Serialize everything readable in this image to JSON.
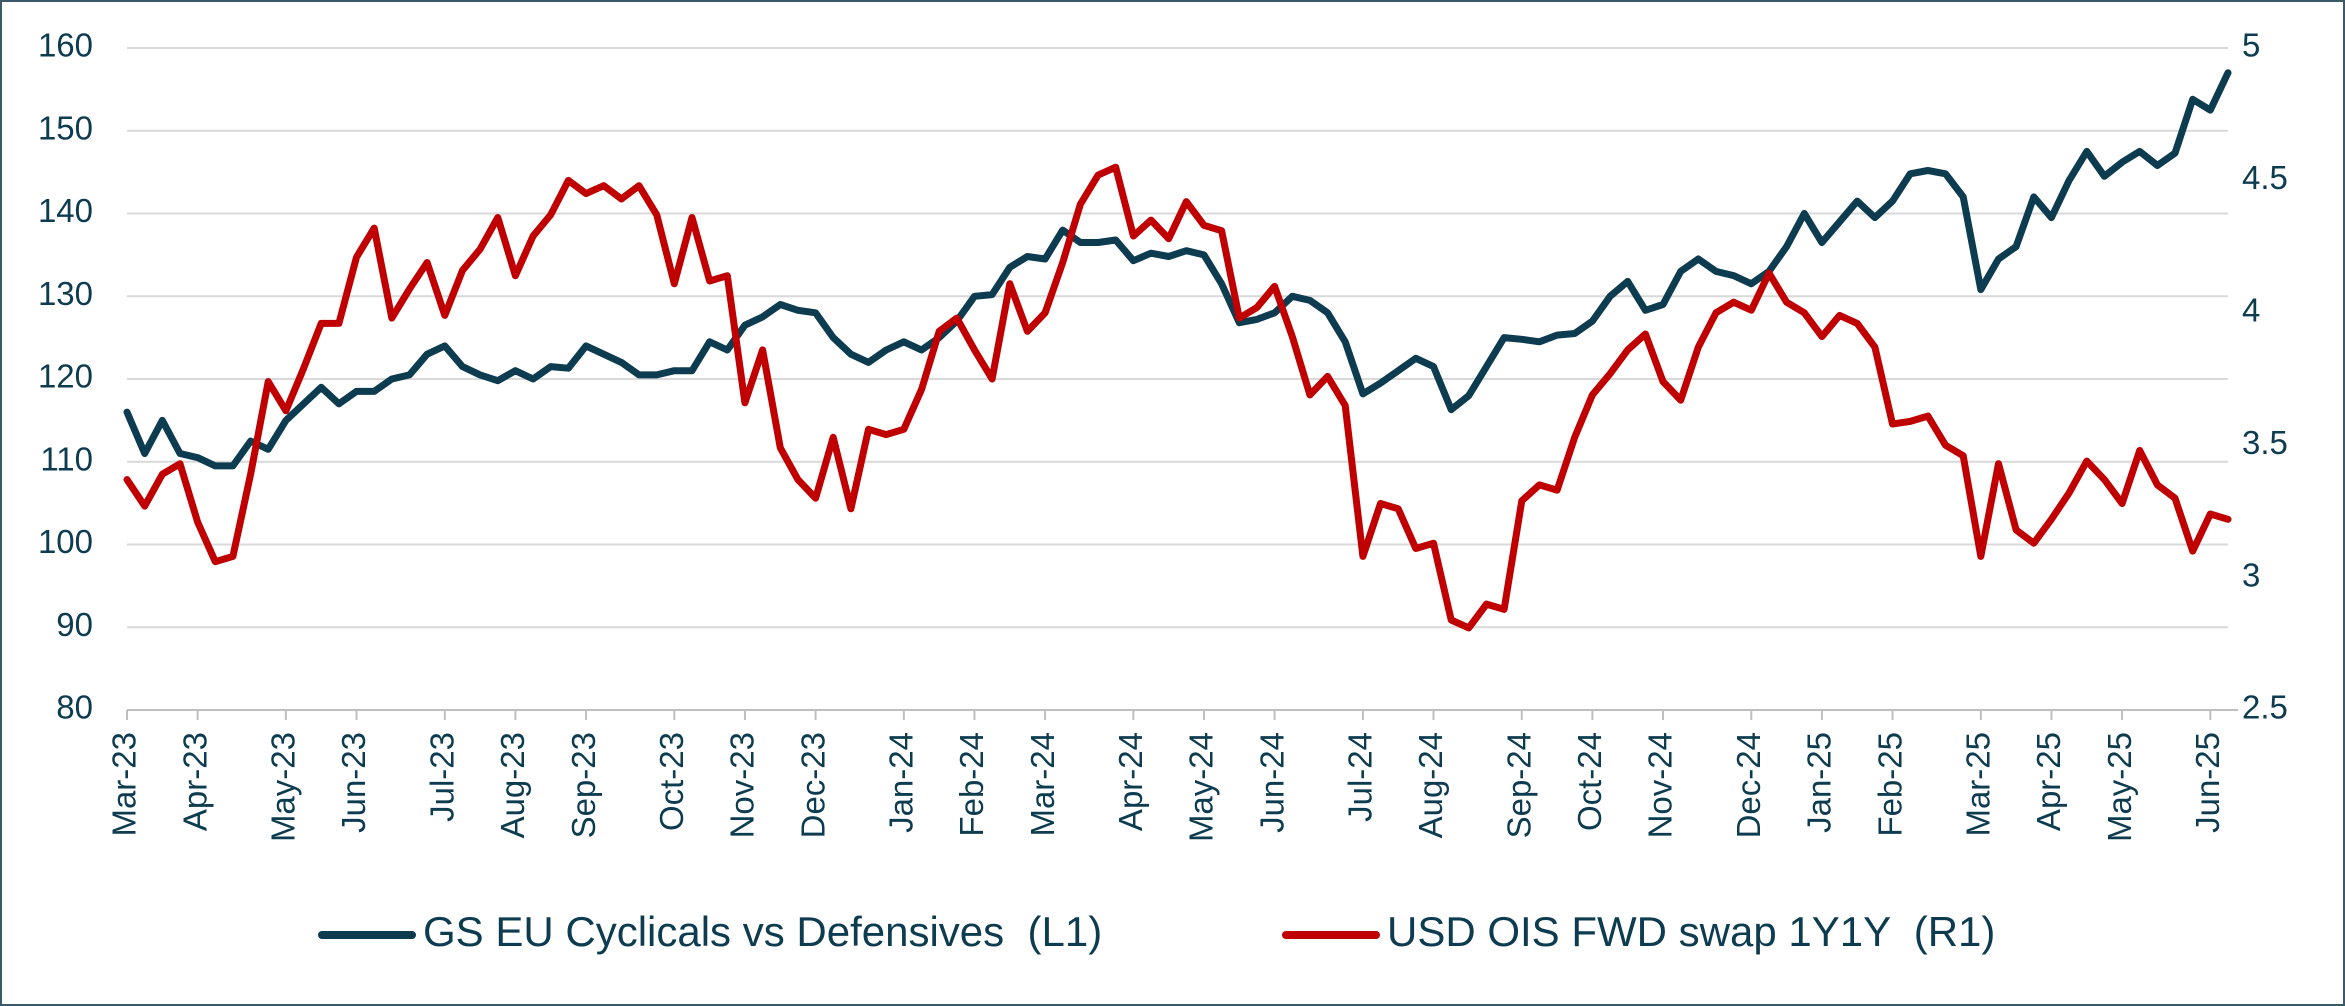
{
  "chart_data": {
    "type": "line",
    "categories": [
      "Mar-23",
      null,
      null,
      null,
      "Apr-23",
      null,
      null,
      null,
      null,
      "May-23",
      null,
      null,
      null,
      "Jun-23",
      null,
      null,
      null,
      null,
      "Jul-23",
      null,
      null,
      null,
      "Aug-23",
      null,
      null,
      null,
      "Sep-23",
      null,
      null,
      null,
      null,
      "Oct-23",
      null,
      null,
      null,
      "Nov-23",
      null,
      null,
      null,
      "Dec-23",
      null,
      null,
      null,
      null,
      "Jan-24",
      null,
      null,
      null,
      "Feb-24",
      null,
      null,
      null,
      "Mar-24",
      null,
      null,
      null,
      null,
      "Apr-24",
      null,
      null,
      null,
      "May-24",
      null,
      null,
      null,
      "Jun-24",
      null,
      null,
      null,
      null,
      "Jul-24",
      null,
      null,
      null,
      "Aug-24",
      null,
      null,
      null,
      null,
      "Sep-24",
      null,
      null,
      null,
      "Oct-24",
      null,
      null,
      null,
      "Nov-24",
      null,
      null,
      null,
      null,
      "Dec-24",
      null,
      null,
      null,
      "Jan-25",
      null,
      null,
      null,
      "Feb-25",
      null,
      null,
      null,
      null,
      "Mar-25",
      null,
      null,
      null,
      "Apr-25",
      null,
      null,
      null,
      "May-25",
      null,
      null,
      null,
      null,
      "Jun-25",
      null
    ],
    "series": [
      {
        "name": "GS EU Cyclicals vs Defensives  (L1)",
        "color": "#0d3b4f",
        "axis": "y",
        "values": [
          116,
          111,
          115,
          111,
          110.5,
          109.5,
          109.5,
          112.5,
          111.5,
          115,
          117,
          119,
          117,
          118.5,
          118.5,
          120,
          120.5,
          123,
          124,
          121.5,
          120.5,
          119.8,
          121,
          120,
          121.5,
          121.3,
          124,
          123,
          122,
          120.5,
          120.5,
          121,
          121,
          124.5,
          123.5,
          126.5,
          127.5,
          129,
          128.3,
          128,
          125,
          123,
          122,
          123.5,
          124.5,
          123.5,
          125,
          127,
          130,
          130.2,
          133.5,
          134.8,
          134.5,
          138,
          136.5,
          136.5,
          136.8,
          134.3,
          135.2,
          134.8,
          135.5,
          135,
          131.5,
          126.8,
          127.2,
          128,
          130,
          129.5,
          128,
          124.5,
          118.2,
          119.5,
          121,
          122.5,
          121.5,
          116.3,
          118,
          121.5,
          125,
          124.8,
          124.5,
          125.3,
          125.5,
          127,
          130,
          131.8,
          128.3,
          129,
          133,
          134.5,
          133,
          132.5,
          131.5,
          133,
          136,
          140,
          136.5,
          139,
          141.5,
          139.5,
          141.5,
          144.8,
          145.2,
          144.8,
          142,
          130.8,
          134.5,
          136,
          142,
          139.5,
          144,
          147.5,
          144.5,
          146.2,
          147.5,
          145.8,
          147.3,
          153.8,
          152.5,
          157
        ]
      },
      {
        "name": "USD OIS FWD swap 1Y1Y  (R1)",
        "color": "#c00000",
        "axis": "y2",
        "values": [
          3.37,
          3.27,
          3.39,
          3.43,
          3.21,
          3.06,
          3.08,
          3.39,
          3.74,
          3.63,
          3.79,
          3.96,
          3.96,
          4.21,
          4.32,
          3.98,
          4.09,
          4.19,
          3.99,
          4.16,
          4.24,
          4.36,
          4.14,
          4.29,
          4.37,
          4.5,
          4.45,
          4.48,
          4.43,
          4.48,
          4.37,
          4.11,
          4.36,
          4.12,
          4.14,
          3.66,
          3.86,
          3.49,
          3.37,
          3.3,
          3.53,
          3.26,
          3.56,
          3.54,
          3.56,
          3.71,
          3.93,
          3.98,
          3.86,
          3.75,
          4.11,
          3.93,
          4,
          4.19,
          4.41,
          4.52,
          4.55,
          4.29,
          4.35,
          4.28,
          4.42,
          4.33,
          4.31,
          3.98,
          4.02,
          4.1,
          3.91,
          3.69,
          3.76,
          3.65,
          3.08,
          3.28,
          3.26,
          3.11,
          3.13,
          2.84,
          2.81,
          2.9,
          2.88,
          3.29,
          3.35,
          3.33,
          3.53,
          3.69,
          3.77,
          3.86,
          3.92,
          3.74,
          3.67,
          3.87,
          4,
          4.04,
          4.01,
          4.15,
          4.04,
          4,
          3.91,
          3.99,
          3.96,
          3.87,
          3.58,
          3.59,
          3.61,
          3.5,
          3.46,
          3.08,
          3.43,
          3.18,
          3.13,
          3.22,
          3.32,
          3.44,
          3.37,
          3.28,
          3.48,
          3.35,
          3.3,
          3.1,
          3.24,
          3.22
        ]
      }
    ],
    "ylim": [
      80,
      160
    ],
    "yticks": [
      80,
      90,
      100,
      110,
      120,
      130,
      140,
      150,
      160
    ],
    "y2lim": [
      2.5,
      5
    ],
    "y2ticks": [
      2.5,
      3,
      3.5,
      4,
      4.5,
      5
    ],
    "grid": true,
    "legend": "bottom"
  }
}
